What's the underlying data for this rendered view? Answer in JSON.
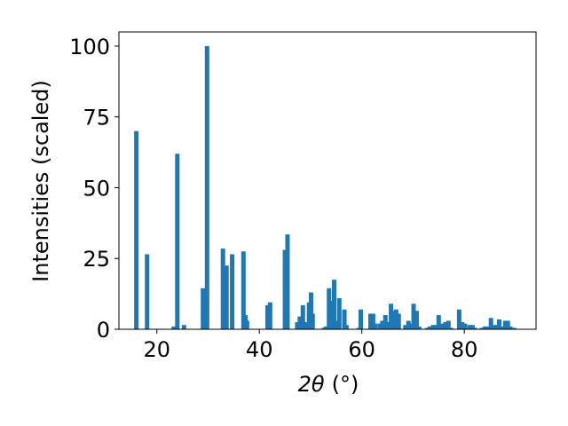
{
  "chart_data": {
    "type": "bar",
    "xlabel_main": "2θ",
    "xlabel_unit": "(°)",
    "ylabel": "Intensities (scaled)",
    "xlim": [
      12.6,
      94.0
    ],
    "ylim": [
      0,
      105
    ],
    "xticks": [
      20,
      40,
      60,
      80
    ],
    "yticks": [
      0,
      25,
      50,
      75,
      100
    ],
    "bar_color": "#1f77b4",
    "x": [
      16.0,
      18.1,
      23.3,
      24.0,
      25.3,
      29.0,
      29.8,
      32.9,
      33.6,
      34.7,
      36.9,
      37.3,
      37.6,
      41.6,
      42.1,
      45.0,
      45.5,
      47.4,
      47.9,
      48.5,
      49.1,
      49.7,
      50.1,
      50.4,
      52.6,
      53.0,
      53.6,
      54.1,
      54.6,
      55.1,
      55.6,
      56.6,
      57.0,
      59.4,
      59.8,
      61.7,
      62.2,
      62.6,
      63.5,
      64.0,
      64.6,
      65.1,
      65.7,
      66.2,
      66.7,
      67.2,
      68.5,
      69.1,
      69.6,
      70.1,
      70.7,
      71.2,
      72.8,
      73.3,
      73.9,
      74.4,
      75.0,
      75.6,
      76.3,
      76.9,
      77.4,
      79.0,
      79.6,
      80.1,
      81.0,
      81.6,
      82.1,
      83.4,
      84.0,
      84.6,
      85.2,
      85.7,
      86.3,
      86.8,
      87.5,
      88.0,
      88.5,
      89.0,
      89.7
    ],
    "values": [
      70,
      26.5,
      1,
      62,
      1.5,
      14.5,
      100,
      28.5,
      22.5,
      26.5,
      27.5,
      5,
      3,
      8.5,
      9.5,
      28,
      33.5,
      2.5,
      4.5,
      8.5,
      2.5,
      9.5,
      13,
      5.5,
      0.5,
      1,
      14.5,
      10,
      17.5,
      3,
      11,
      7,
      1.5,
      0.5,
      7,
      5.5,
      5.5,
      2,
      2,
      3,
      5,
      2.5,
      9,
      6.5,
      7,
      5.5,
      1.5,
      3,
      2,
      9,
      6.5,
      1,
      0.5,
      1,
      1.5,
      1.5,
      5,
      2,
      2.5,
      3,
      0.5,
      7,
      2.5,
      2,
      1.5,
      1.5,
      0.5,
      0.5,
      1,
      1,
      4,
      1.5,
      1.5,
      3.5,
      1,
      3,
      3,
      1,
      0.5
    ]
  }
}
